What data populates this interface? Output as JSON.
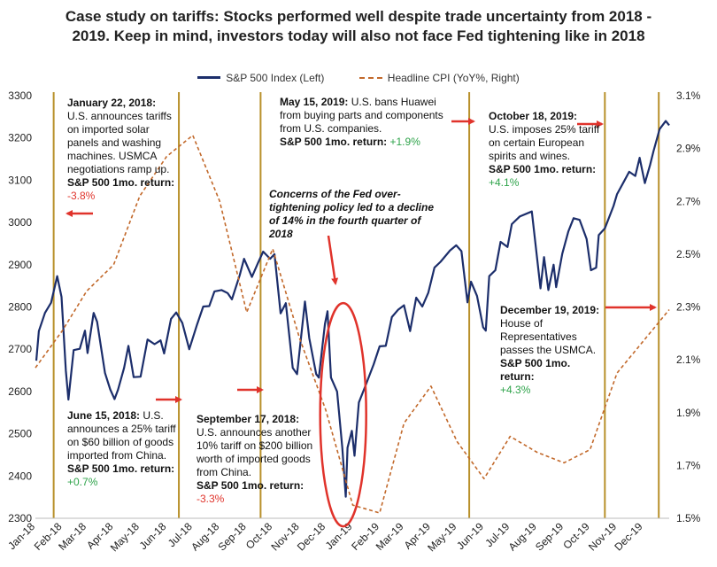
{
  "title_lines": [
    "Case study on tariffs: Stocks performed well despite trade uncertainty from 2018 -",
    "2019. Keep in mind, investors today will also not face Fed tightening like in 2018"
  ],
  "chart_data": {
    "type": "line",
    "title": "Case study on tariffs: Stocks performed well despite trade uncertainty from 2018 - 2019. Keep in mind, investors today will also not face Fed tightening like in 2018",
    "x_ticks": [
      "Jan-18",
      "Feb-18",
      "Mar-18",
      "Apr-18",
      "May-18",
      "Jun-18",
      "Jul-18",
      "Aug-18",
      "Sep-18",
      "Oct-18",
      "Nov-18",
      "Dec-18",
      "Jan-19",
      "Feb-19",
      "Mar-19",
      "Apr-19",
      "May-19",
      "Jun-19",
      "Jul-19",
      "Aug-19",
      "Sep-19",
      "Oct-19",
      "Nov-19",
      "Dec-19"
    ],
    "y_left": {
      "ticks": [
        2300,
        2400,
        2500,
        2600,
        2700,
        2800,
        2900,
        3000,
        3100,
        3200,
        3300
      ],
      "range": [
        2300,
        3300
      ]
    },
    "y_right": {
      "ticks": [
        "1.5%",
        "1.7%",
        "1.9%",
        "2.1%",
        "2.3%",
        "2.5%",
        "2.7%",
        "2.9%",
        "3.1%"
      ],
      "range": [
        1.5,
        3.1
      ]
    },
    "legend_position": "top",
    "series": [
      {
        "name": "S&P 500 Index (Left)",
        "axis": "left",
        "color": "#1c2e6b",
        "points": [
          [
            "2018-01-02",
            2673
          ],
          [
            "2018-01-05",
            2743
          ],
          [
            "2018-01-12",
            2786
          ],
          [
            "2018-01-19",
            2810
          ],
          [
            "2018-01-26",
            2873
          ],
          [
            "2018-01-31",
            2824
          ],
          [
            "2018-02-05",
            2649
          ],
          [
            "2018-02-08",
            2581
          ],
          [
            "2018-02-14",
            2698
          ],
          [
            "2018-02-21",
            2701
          ],
          [
            "2018-02-27",
            2744
          ],
          [
            "2018-03-02",
            2691
          ],
          [
            "2018-03-09",
            2786
          ],
          [
            "2018-03-13",
            2765
          ],
          [
            "2018-03-22",
            2644
          ],
          [
            "2018-03-28",
            2605
          ],
          [
            "2018-04-02",
            2582
          ],
          [
            "2018-04-06",
            2604
          ],
          [
            "2018-04-13",
            2656
          ],
          [
            "2018-04-18",
            2708
          ],
          [
            "2018-04-24",
            2634
          ],
          [
            "2018-05-02",
            2635
          ],
          [
            "2018-05-10",
            2723
          ],
          [
            "2018-05-18",
            2712
          ],
          [
            "2018-05-25",
            2721
          ],
          [
            "2018-05-29",
            2690
          ],
          [
            "2018-06-06",
            2772
          ],
          [
            "2018-06-12",
            2787
          ],
          [
            "2018-06-19",
            2762
          ],
          [
            "2018-06-27",
            2700
          ],
          [
            "2018-07-06",
            2759
          ],
          [
            "2018-07-13",
            2801
          ],
          [
            "2018-07-20",
            2802
          ],
          [
            "2018-07-26",
            2837
          ],
          [
            "2018-08-03",
            2840
          ],
          [
            "2018-08-10",
            2833
          ],
          [
            "2018-08-15",
            2818
          ],
          [
            "2018-08-24",
            2875
          ],
          [
            "2018-08-29",
            2914
          ],
          [
            "2018-09-07",
            2871
          ],
          [
            "2018-09-14",
            2904
          ],
          [
            "2018-09-20",
            2931
          ],
          [
            "2018-09-28",
            2914
          ],
          [
            "2018-10-03",
            2925
          ],
          [
            "2018-10-10",
            2785
          ],
          [
            "2018-10-16",
            2809
          ],
          [
            "2018-10-24",
            2656
          ],
          [
            "2018-10-29",
            2641
          ],
          [
            "2018-11-07",
            2813
          ],
          [
            "2018-11-12",
            2726
          ],
          [
            "2018-11-20",
            2641
          ],
          [
            "2018-11-23",
            2633
          ],
          [
            "2018-11-30",
            2760
          ],
          [
            "2018-12-03",
            2790
          ],
          [
            "2018-12-07",
            2633
          ],
          [
            "2018-12-14",
            2600
          ],
          [
            "2018-12-20",
            2467
          ],
          [
            "2018-12-24",
            2351
          ],
          [
            "2018-12-26",
            2467
          ],
          [
            "2018-12-31",
            2507
          ],
          [
            "2019-01-03",
            2448
          ],
          [
            "2019-01-08",
            2574
          ],
          [
            "2019-01-15",
            2610
          ],
          [
            "2019-01-25",
            2664
          ],
          [
            "2019-02-01",
            2707
          ],
          [
            "2019-02-08",
            2708
          ],
          [
            "2019-02-15",
            2776
          ],
          [
            "2019-02-22",
            2793
          ],
          [
            "2019-03-01",
            2804
          ],
          [
            "2019-03-08",
            2743
          ],
          [
            "2019-03-15",
            2822
          ],
          [
            "2019-03-22",
            2801
          ],
          [
            "2019-03-29",
            2834
          ],
          [
            "2019-04-05",
            2893
          ],
          [
            "2019-04-12",
            2907
          ],
          [
            "2019-04-23",
            2934
          ],
          [
            "2019-04-30",
            2946
          ],
          [
            "2019-05-06",
            2932
          ],
          [
            "2019-05-13",
            2811
          ],
          [
            "2019-05-17",
            2860
          ],
          [
            "2019-05-24",
            2826
          ],
          [
            "2019-05-31",
            2752
          ],
          [
            "2019-06-03",
            2744
          ],
          [
            "2019-06-07",
            2873
          ],
          [
            "2019-06-14",
            2887
          ],
          [
            "2019-06-20",
            2954
          ],
          [
            "2019-06-28",
            2942
          ],
          [
            "2019-07-03",
            2996
          ],
          [
            "2019-07-12",
            3014
          ],
          [
            "2019-07-26",
            3026
          ],
          [
            "2019-08-05",
            2844
          ],
          [
            "2019-08-09",
            2918
          ],
          [
            "2019-08-14",
            2840
          ],
          [
            "2019-08-20",
            2900
          ],
          [
            "2019-08-23",
            2847
          ],
          [
            "2019-08-30",
            2926
          ],
          [
            "2019-09-06",
            2979
          ],
          [
            "2019-09-12",
            3010
          ],
          [
            "2019-09-19",
            3006
          ],
          [
            "2019-09-27",
            2961
          ],
          [
            "2019-10-02",
            2887
          ],
          [
            "2019-10-08",
            2893
          ],
          [
            "2019-10-11",
            2970
          ],
          [
            "2019-10-18",
            2986
          ],
          [
            "2019-10-28",
            3039
          ],
          [
            "2019-11-01",
            3067
          ],
          [
            "2019-11-08",
            3093
          ],
          [
            "2019-11-15",
            3120
          ],
          [
            "2019-11-22",
            3110
          ],
          [
            "2019-11-27",
            3153
          ],
          [
            "2019-12-03",
            3093
          ],
          [
            "2019-12-09",
            3136
          ],
          [
            "2019-12-13",
            3169
          ],
          [
            "2019-12-20",
            3221
          ],
          [
            "2019-12-27",
            3240
          ],
          [
            "2019-12-31",
            3230
          ]
        ]
      },
      {
        "name": "Headline CPI (YoY%, Right)",
        "axis": "right",
        "color": "#c2692b",
        "dash": true,
        "points": [
          [
            "2018-01-01",
            2.07
          ],
          [
            "2018-02-01",
            2.21
          ],
          [
            "2018-03-01",
            2.36
          ],
          [
            "2018-04-01",
            2.46
          ],
          [
            "2018-05-01",
            2.72
          ],
          [
            "2018-06-01",
            2.87
          ],
          [
            "2018-07-01",
            2.95
          ],
          [
            "2018-08-01",
            2.7
          ],
          [
            "2018-09-01",
            2.28
          ],
          [
            "2018-10-01",
            2.52
          ],
          [
            "2018-11-01",
            2.18
          ],
          [
            "2018-12-01",
            1.91
          ],
          [
            "2019-01-01",
            1.55
          ],
          [
            "2019-02-01",
            1.52
          ],
          [
            "2019-03-01",
            1.86
          ],
          [
            "2019-04-01",
            2.0
          ],
          [
            "2019-05-01",
            1.79
          ],
          [
            "2019-06-01",
            1.65
          ],
          [
            "2019-07-01",
            1.81
          ],
          [
            "2019-08-01",
            1.75
          ],
          [
            "2019-09-01",
            1.71
          ],
          [
            "2019-10-01",
            1.76
          ],
          [
            "2019-11-01",
            2.05
          ],
          [
            "2019-12-01",
            2.17
          ],
          [
            "2019-12-31",
            2.29
          ]
        ]
      }
    ],
    "event_dates": [
      "2018-01-22",
      "2018-06-15",
      "2018-09-17",
      "2019-05-15",
      "2019-10-18",
      "2019-12-19"
    ]
  },
  "annotations": {
    "jan": {
      "head": "January 22, 2018:",
      "body": "U.S. announces tariffs on imported solar panels and washing machines. USMCA negotiations ramp up.",
      "ret_label": "S&P 500 1mo. return:",
      "ret_value": "-3.8%"
    },
    "jun": {
      "head": "June 15, 2018:",
      "body": "U.S. announces a 25% tariff on $60 billion of goods imported from China.",
      "ret_label": "S&P 500 1mo. return:",
      "ret_value": "+0.7%"
    },
    "sep": {
      "head": "September 17, 2018:",
      "body": "U.S. announces another 10% tariff on $200 billion worth of imported goods from China.",
      "ret_label": "S&P 500 1mo. return:",
      "ret_value": "-3.3%"
    },
    "may": {
      "head": "May 15, 2019:",
      "body": "U.S. bans Huawei from buying parts and components from U.S. companies.",
      "ret_label": "S&P 500 1mo. return:",
      "ret_value": "+1.9%"
    },
    "oct": {
      "head": "October 18, 2019:",
      "body": "U.S. imposes 25% tariff on certain European spirits and wines.",
      "ret_label": "S&P 500 1mo. return:",
      "ret_value": "+4.1%"
    },
    "dec": {
      "head": "December 19, 2019:",
      "body": "House of Representatives passes the USMCA.",
      "ret_label": "S&P 500 1mo. return:",
      "ret_value": "+4.3%"
    },
    "fed": "Concerns of the Fed over-tightening policy led to a decline of 14% in the fourth quarter of 2018"
  },
  "colors": {
    "sp500": "#1c2e6b",
    "cpi": "#c2692b",
    "event_line": "#b8902a",
    "arrow": "#e0332b",
    "negative": "#e0332b",
    "positive": "#2ea34a"
  }
}
